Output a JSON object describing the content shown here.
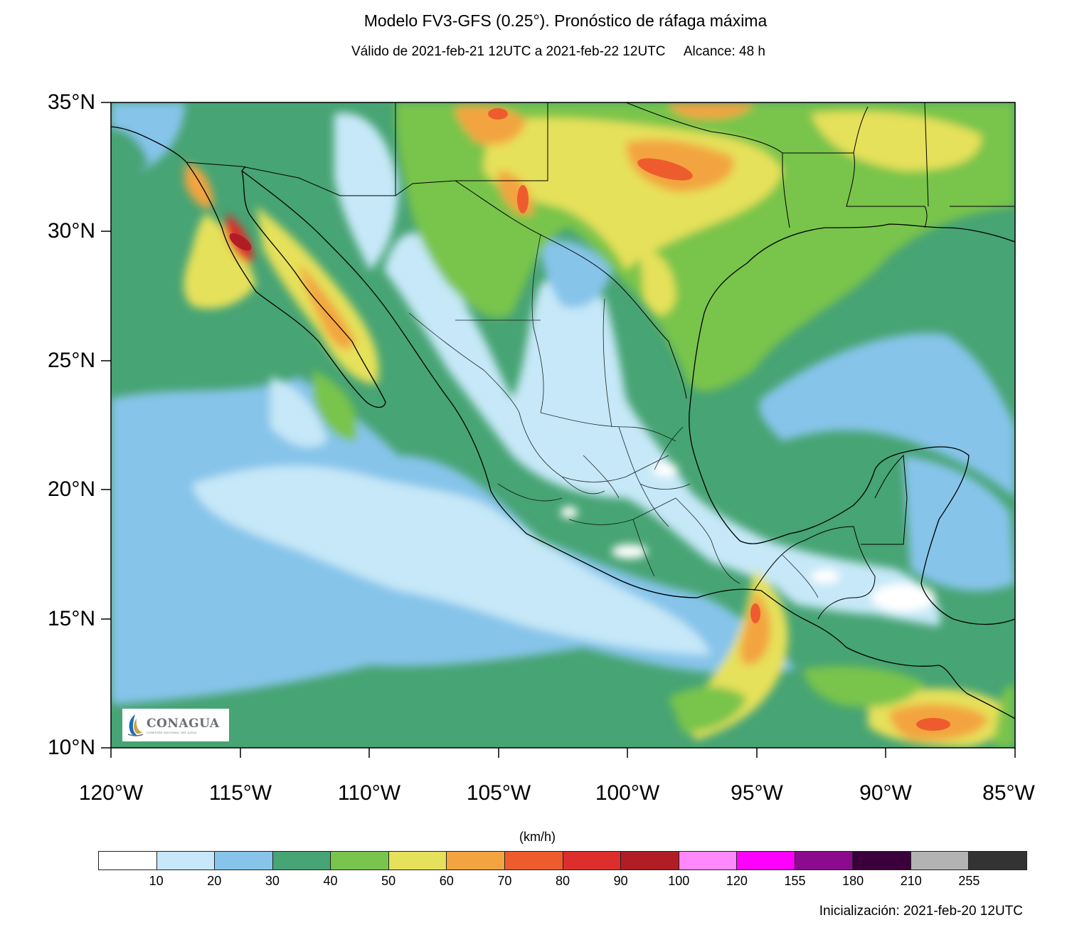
{
  "title": "Modelo FV3-GFS (0.25°). Pronóstico de ráfaga máxima",
  "subtitle": {
    "valid": "Válido de 2021-feb-21 12UTC a 2021-feb-22 12UTC",
    "range": "Alcance: 48 h"
  },
  "map": {
    "lat_labels": [
      "35°N",
      "30°N",
      "25°N",
      "20°N",
      "15°N",
      "10°N"
    ],
    "lon_labels": [
      "120°W",
      "115°W",
      "110°W",
      "105°W",
      "100°W",
      "95°W",
      "90°W",
      "85°W"
    ],
    "extent": {
      "lon_min": -120,
      "lon_max": -85,
      "lat_min": 10,
      "lat_max": 35
    }
  },
  "colorbar": {
    "units": "(km/h)",
    "labels": [
      "10",
      "20",
      "30",
      "40",
      "50",
      "60",
      "70",
      "80",
      "90",
      "100",
      "120",
      "155",
      "180",
      "210",
      "255"
    ],
    "colors": [
      "#ffffff",
      "#c6e8f8",
      "#86c4ea",
      "#47a474",
      "#79c44c",
      "#e6e15a",
      "#f3a441",
      "#ee5c2e",
      "#dc2e2c",
      "#b01d24",
      "#ff88ff",
      "#ff00ff",
      "#8b0a8d",
      "#3b003b",
      "#b3b3b3",
      "#333333"
    ]
  },
  "initialization": "Inicialización: 2021-feb-20 12UTC",
  "logo": {
    "name": "CONAGUA",
    "subtitle": "COMISIÓN NACIONAL DEL AGUA"
  }
}
